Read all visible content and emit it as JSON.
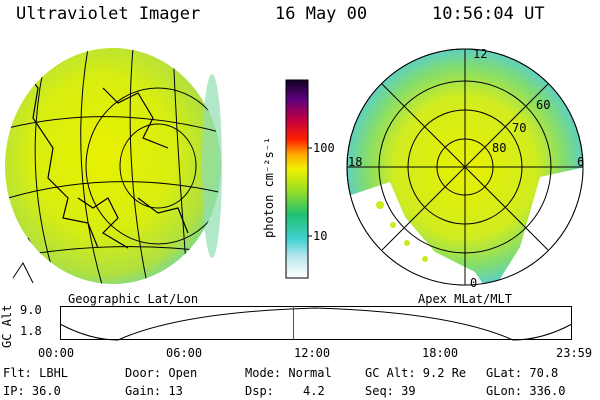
{
  "header": {
    "instrument": "Ultraviolet Imager",
    "date": "16 May 00",
    "time": "10:56:04 UT"
  },
  "left_panel": {
    "caption": "Geographic Lat/Lon"
  },
  "right_panel": {
    "caption": "Apex  MLat/MLT",
    "mlt_labels": [
      "12",
      "18",
      "6",
      "0"
    ],
    "mlat_labels": [
      "60",
      "70",
      "80"
    ]
  },
  "colorbar": {
    "label": "photon cm⁻²s⁻¹",
    "ticks": [
      "100",
      "10"
    ],
    "scale": "log"
  },
  "timeline": {
    "ylabel": "GC Alt",
    "ytick_top": "9.0",
    "ytick_bottom": "1.8",
    "xticks": [
      "00:00",
      "06:00",
      "12:00",
      "18:00",
      "23:59"
    ],
    "current_time_fraction": 0.456,
    "marker_color": "#ff0000"
  },
  "info": {
    "filter": "Flt: LBHL",
    "door": "Door: Open",
    "mode": "Mode: Normal",
    "gc_alt": "GC Alt: 9.2 Re",
    "glat": "GLat:  70.8",
    "ip": "IP: 36.0",
    "gain": "Gain: 13",
    "dsp_label": "Dsp:",
    "dsp_value": "4.2",
    "seq": "Seq: 39",
    "glon": "GLon: 336.0"
  }
}
